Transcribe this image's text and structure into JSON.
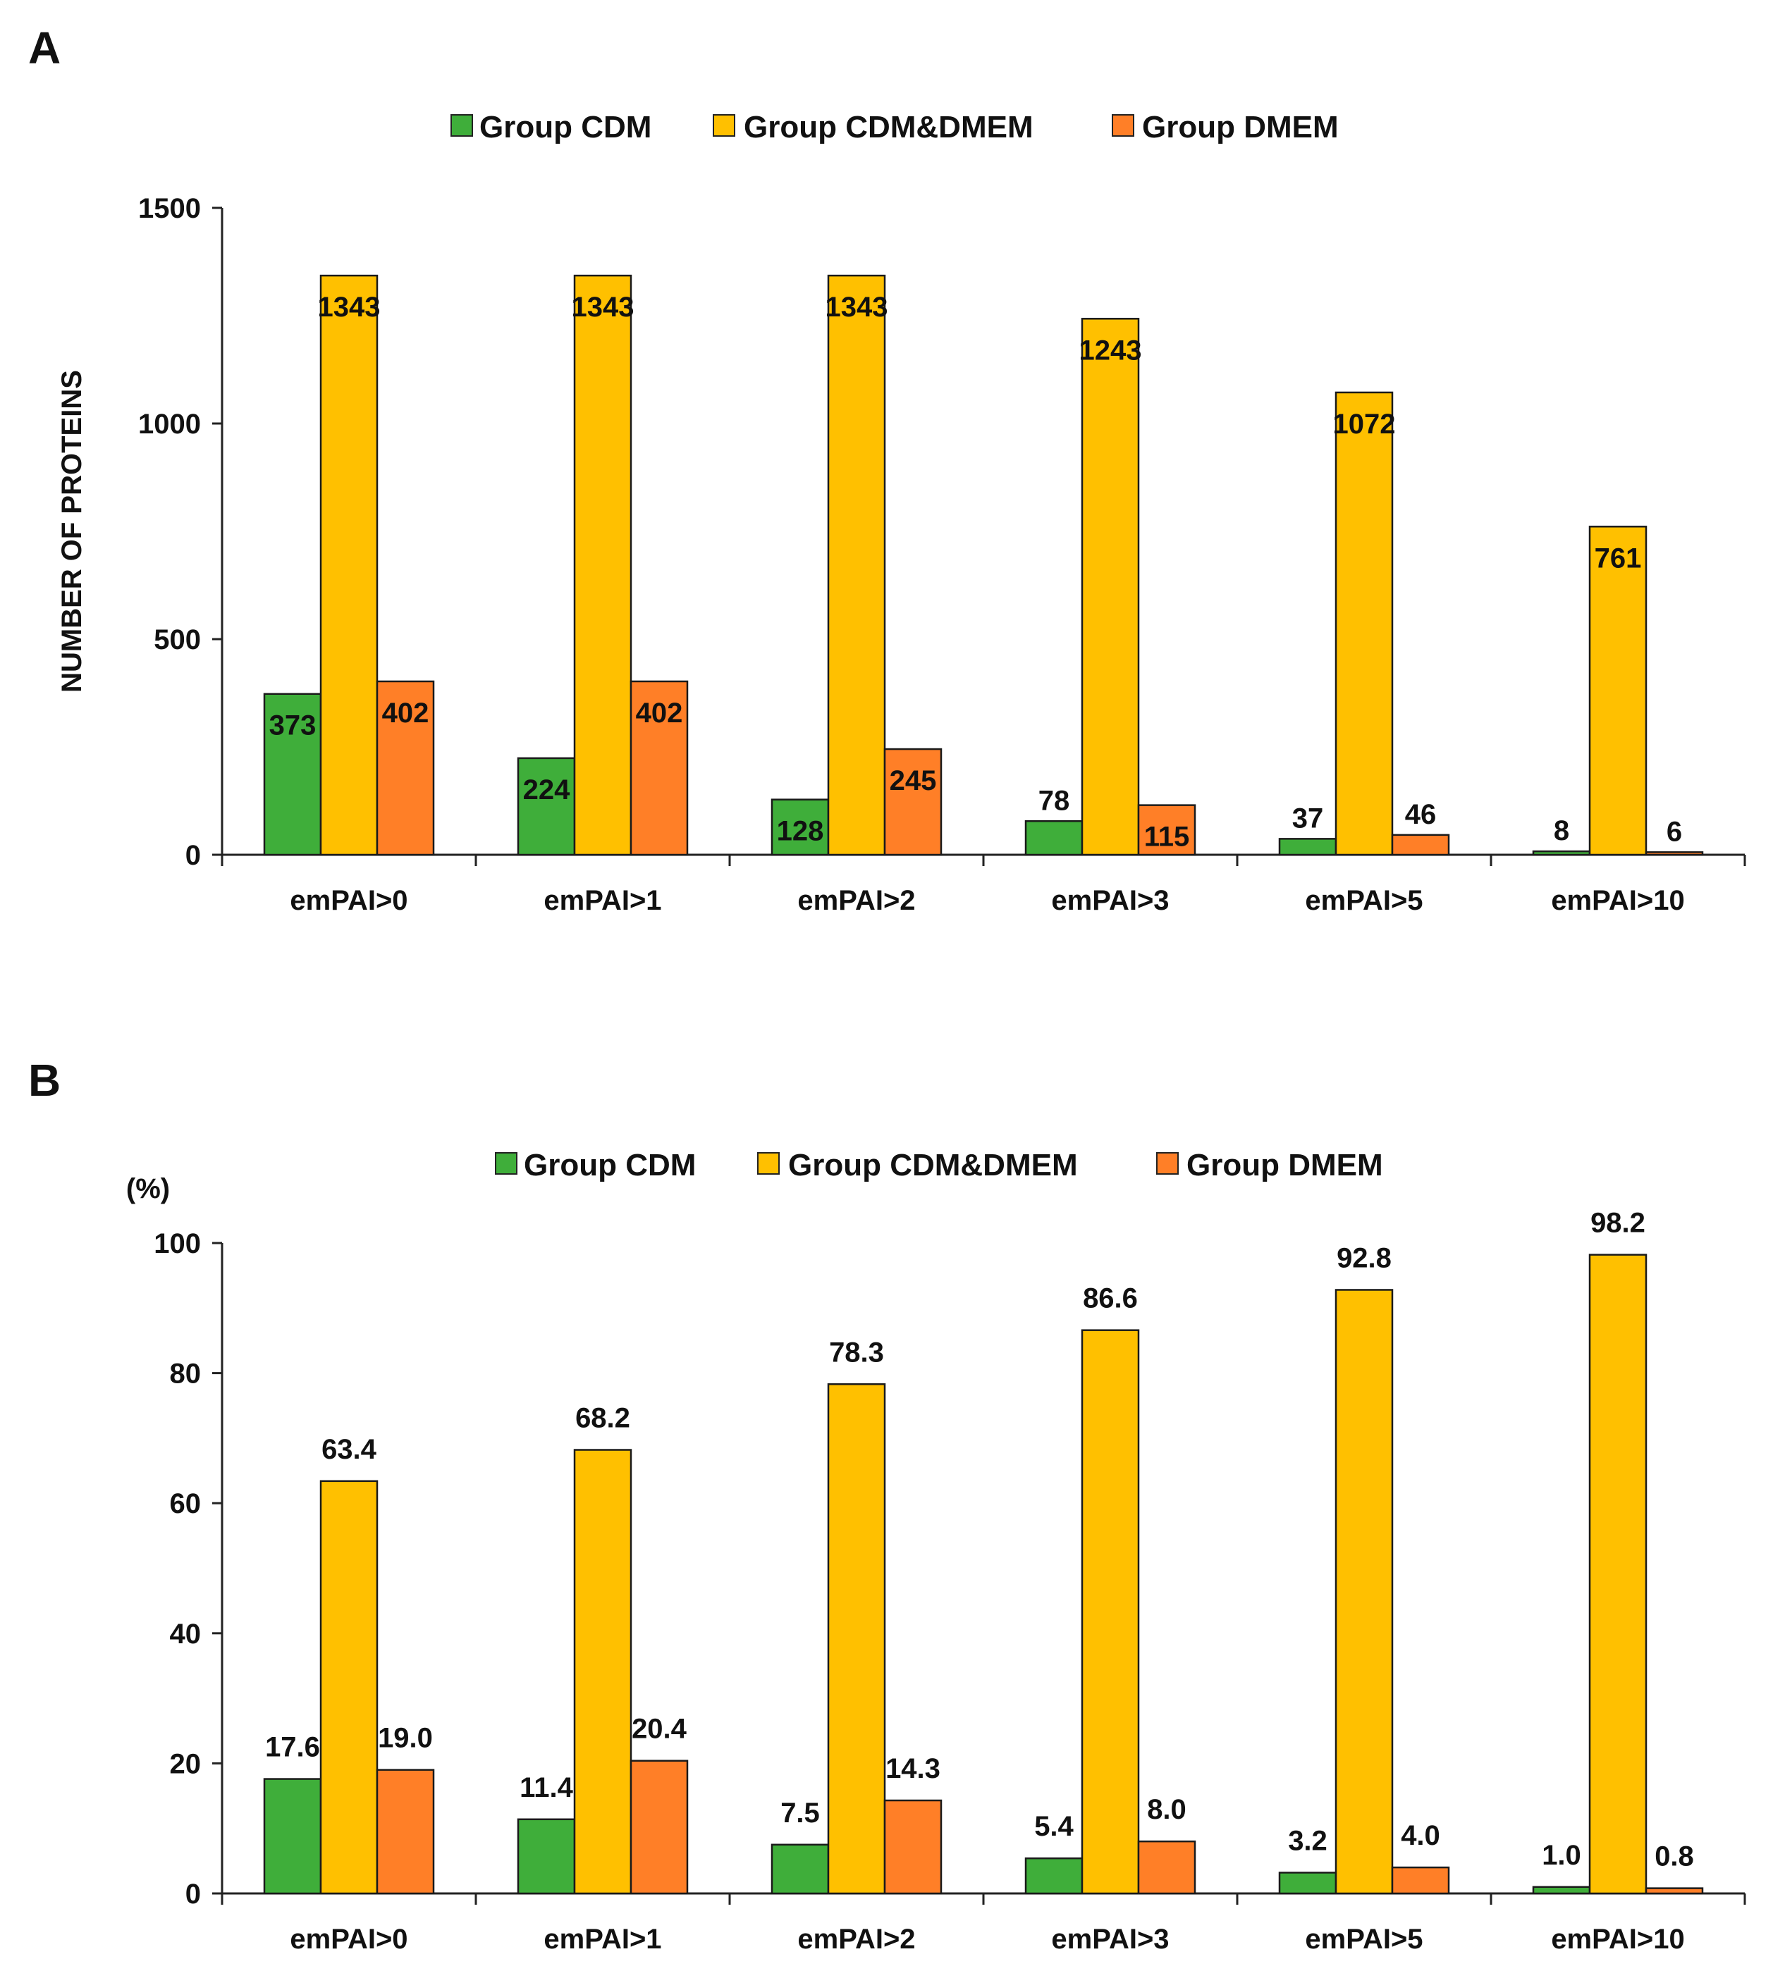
{
  "colors": {
    "Group CDM": "#3fae3a",
    "Group CDM&DMEM": "#ffc000",
    "Group DMEM": "#ff7f27"
  },
  "chart_data": [
    {
      "panel": "A",
      "type": "bar",
      "title": "",
      "xlabel": "",
      "ylabel": "NUMBER OF PROTEINS",
      "unit_label": "",
      "ylim": [
        0,
        1500
      ],
      "yticks": [
        0,
        500,
        1000,
        1500
      ],
      "ytick_labels": [
        "0",
        "500",
        "1000",
        "1500"
      ],
      "categories": [
        "emPAI>0",
        "emPAI>1",
        "emPAI>2",
        "emPAI>3",
        "emPAI>5",
        "emPAI>10"
      ],
      "legend": [
        "Group CDM",
        "Group CDM&DMEM",
        "Group DMEM"
      ],
      "legend_position": "top",
      "grid": false,
      "series": [
        {
          "name": "Group CDM",
          "values": [
            373,
            224,
            128,
            78,
            37,
            8
          ],
          "labels": [
            "373",
            "224",
            "128",
            "78",
            "37",
            "8"
          ]
        },
        {
          "name": "Group CDM&DMEM",
          "values": [
            1343,
            1343,
            1343,
            1243,
            1072,
            761
          ],
          "labels": [
            "1343",
            "1343",
            "1343",
            "1243",
            "1072",
            "761"
          ]
        },
        {
          "name": "Group DMEM",
          "values": [
            402,
            402,
            245,
            115,
            46,
            6
          ],
          "labels": [
            "402",
            "402",
            "245",
            "115",
            "46",
            "6"
          ]
        }
      ]
    },
    {
      "panel": "B",
      "type": "bar",
      "title": "",
      "xlabel": "",
      "ylabel": "",
      "unit_label": "(%)",
      "ylim": [
        0,
        100
      ],
      "yticks": [
        0,
        20,
        40,
        60,
        80,
        100
      ],
      "ytick_labels": [
        "0",
        "20",
        "40",
        "60",
        "80",
        "100"
      ],
      "categories": [
        "emPAI>0",
        "emPAI>1",
        "emPAI>2",
        "emPAI>3",
        "emPAI>5",
        "emPAI>10"
      ],
      "legend": [
        "Group CDM",
        "Group CDM&DMEM",
        "Group DMEM"
      ],
      "legend_position": "top",
      "grid": false,
      "series": [
        {
          "name": "Group CDM",
          "values": [
            17.6,
            11.4,
            7.5,
            5.4,
            3.2,
            1.0
          ],
          "labels": [
            "17.6",
            "11.4",
            "7.5",
            "5.4",
            "3.2",
            "1.0"
          ]
        },
        {
          "name": "Group CDM&DMEM",
          "values": [
            63.4,
            68.2,
            78.3,
            86.6,
            92.8,
            98.2
          ],
          "labels": [
            "63.4",
            "68.2",
            "78.3",
            "86.6",
            "92.8",
            "98.2"
          ]
        },
        {
          "name": "Group DMEM",
          "values": [
            19.0,
            20.4,
            14.3,
            8.0,
            4.0,
            0.8
          ],
          "labels": [
            "19.0",
            "20.4",
            "14.3",
            "8.0",
            "4.0",
            "0.8"
          ]
        }
      ]
    }
  ]
}
